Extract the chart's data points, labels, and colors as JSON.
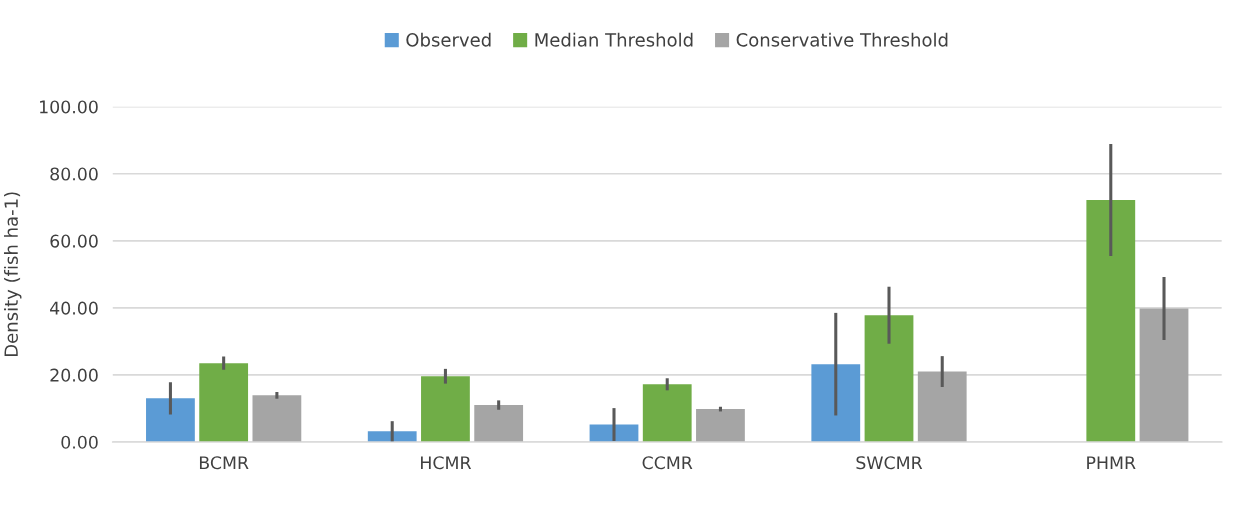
{
  "chart_data": {
    "type": "bar",
    "ylabel": "Density (fish ha-1)",
    "categories": [
      "BCMR",
      "HCMR",
      "CCMR",
      "SWCMR",
      "PHMR"
    ],
    "series": [
      {
        "name": "Observed",
        "color": "#5b9bd5",
        "values": [
          13.0,
          3.2,
          5.2,
          23.2,
          null
        ],
        "errors": [
          4.8,
          3.0,
          4.9,
          15.3,
          null
        ]
      },
      {
        "name": "Median Threshold",
        "color": "#70ad47",
        "values": [
          23.5,
          19.6,
          17.2,
          37.8,
          72.2
        ],
        "errors": [
          2.0,
          2.2,
          1.8,
          8.5,
          16.7
        ]
      },
      {
        "name": "Conservative Threshold",
        "color": "#a5a5a5",
        "values": [
          13.9,
          11.0,
          9.8,
          21.0,
          39.8
        ],
        "errors": [
          1.0,
          1.4,
          0.7,
          4.6,
          9.4
        ]
      }
    ],
    "ylim": [
      0,
      100
    ],
    "yticks": [
      {
        "value": 0,
        "label": "0.00"
      },
      {
        "value": 20,
        "label": "20.00"
      },
      {
        "value": 40,
        "label": "40.00"
      },
      {
        "value": 60,
        "label": "60.00"
      },
      {
        "value": 80,
        "label": "80.00"
      },
      {
        "value": 100,
        "label": "100.00"
      }
    ],
    "grid": "y",
    "legend": "top"
  }
}
